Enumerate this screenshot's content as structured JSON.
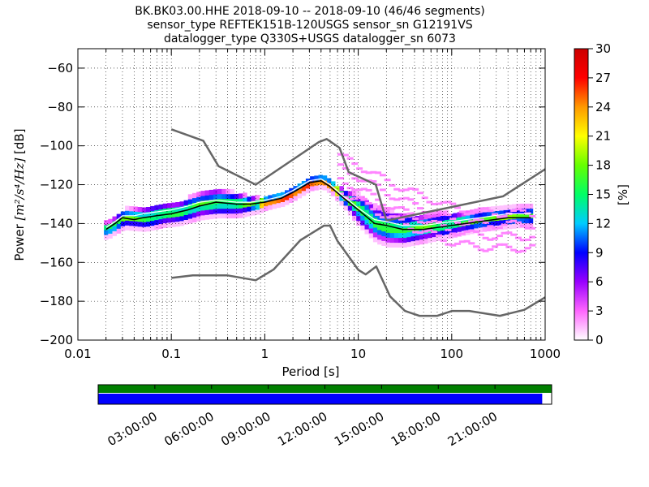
{
  "title_lines": [
    "BK.BK03.00.HHE   2018-09-10 -- 2018-09-10  (46/46 segments)",
    "sensor_type REFTEK151B-120USGS sensor_sn G12191VS",
    "datalogger_type Q330S+USGS datalogger_sn 6073"
  ],
  "colorbar": {
    "label": "[%]",
    "ticks": [
      "0",
      "3",
      "6",
      "9",
      "12",
      "15",
      "18",
      "21",
      "24",
      "27",
      "30"
    ],
    "range": [
      0,
      30
    ],
    "colors": [
      "#ffffff",
      "#ff66ff",
      "#9900ff",
      "#0000ff",
      "#00ccff",
      "#00ff66",
      "#66ff00",
      "#ffff00",
      "#ff9900",
      "#ff0000",
      "#cc0000"
    ]
  },
  "chart_data": {
    "type": "heatmap",
    "xlabel": "Period [s]",
    "ylabel_prefix": "Power ",
    "ylabel_units": "[m²/s⁴/Hz]",
    "ylabel_suffix": " [dB]",
    "xscale": "log",
    "xlim": [
      0.01,
      1000
    ],
    "ylim": [
      -200,
      -50
    ],
    "xticks": [
      {
        "v": 0.01,
        "label": "0.01"
      },
      {
        "v": 0.1,
        "label": "0.1"
      },
      {
        "v": 1,
        "label": "1"
      },
      {
        "v": 10,
        "label": "10"
      },
      {
        "v": 100,
        "label": "100"
      },
      {
        "v": 1000,
        "label": "1000"
      }
    ],
    "yticks": [
      -200,
      -180,
      -160,
      -140,
      -120,
      -100,
      -80,
      -60
    ],
    "grid": "dotted",
    "nhnm": {
      "name": "NHNM",
      "x": [
        0.1,
        0.22,
        0.32,
        0.8,
        3.8,
        4.6,
        6.3,
        7.9,
        15.4,
        20,
        354,
        1000
      ],
      "y": [
        -91.5,
        -97.4,
        -110.5,
        -120,
        -98,
        -96.5,
        -101,
        -113.5,
        -120,
        -138.5,
        -126,
        -112
      ]
    },
    "nlnm": {
      "name": "NLNM",
      "x": [
        0.1,
        0.17,
        0.4,
        0.8,
        1.24,
        2.4,
        4.3,
        5,
        6,
        10,
        12,
        15.6,
        21.9,
        31.6,
        45,
        70,
        101,
        154,
        328,
        600,
        1000
      ],
      "y": [
        -168,
        -166.7,
        -166.7,
        -169.2,
        -163.7,
        -148.6,
        -141.1,
        -141.1,
        -149,
        -163.8,
        -166.2,
        -162.1,
        -177.5,
        -185,
        -187.5,
        -187.5,
        -185,
        -185,
        -187.5,
        -184.4,
        -178
      ]
    },
    "mode": {
      "name": "mode",
      "x": [
        0.02,
        0.025,
        0.03,
        0.04,
        0.05,
        0.07,
        0.1,
        0.15,
        0.2,
        0.3,
        0.5,
        0.7,
        1,
        1.5,
        2,
        3,
        4,
        5,
        7,
        10,
        15,
        20,
        30,
        50,
        100,
        200,
        400,
        700
      ],
      "y": [
        -143,
        -140,
        -137,
        -138,
        -137,
        -136,
        -135,
        -133,
        -131,
        -129,
        -130,
        -130,
        -129,
        -127,
        -124,
        -119,
        -118,
        -121,
        -127,
        -133,
        -140,
        -141,
        -143,
        -143,
        -141,
        -139,
        -137,
        -137
      ]
    },
    "mean": {
      "name": "mean",
      "x": [
        0.02,
        0.025,
        0.03,
        0.04,
        0.05,
        0.07,
        0.1,
        0.15,
        0.2,
        0.3,
        0.5,
        0.7,
        1,
        1.5,
        2,
        3,
        4,
        5,
        7,
        10,
        15,
        20,
        30,
        50,
        100,
        200,
        400,
        700
      ],
      "y": [
        -142,
        -139,
        -136,
        -136,
        -135,
        -134,
        -133,
        -131,
        -129,
        -128,
        -129,
        -129,
        -128,
        -126,
        -123,
        -118,
        -117,
        -120,
        -126,
        -132,
        -138,
        -139,
        -141,
        -141,
        -139,
        -137,
        -135,
        -135
      ]
    },
    "density": {
      "center_x": [
        0.02,
        0.03,
        0.05,
        0.08,
        0.12,
        0.2,
        0.3,
        0.5,
        0.8,
        1,
        1.5,
        2,
        3,
        4,
        5,
        7,
        10,
        15,
        20,
        30,
        50,
        100,
        200,
        500,
        700
      ],
      "center_y": [
        -143,
        -137,
        -137,
        -135,
        -134,
        -130,
        -129,
        -130,
        -130,
        -129,
        -127,
        -124,
        -119,
        -118,
        -121,
        -127,
        -133,
        -140,
        -142,
        -143,
        -142,
        -140,
        -138,
        -136,
        -136
      ],
      "spread": [
        4,
        5,
        6,
        6,
        6,
        7,
        7,
        6,
        4,
        3,
        3,
        3,
        3,
        3,
        3,
        5,
        8,
        9,
        9,
        8,
        7,
        6,
        5,
        5,
        5
      ]
    },
    "outliers": {
      "x": [
        6,
        10,
        15,
        20,
        30,
        50,
        80,
        150,
        300,
        700
      ],
      "y": [
        -105,
        -110,
        -115,
        -118,
        -122,
        -126,
        -130,
        -133,
        -134,
        -134
      ]
    }
  },
  "timeline": {
    "ticks": [
      "03:00:00",
      "06:00:00",
      "09:00:00",
      "12:00:00",
      "15:00:00",
      "18:00:00",
      "21:00:00"
    ],
    "tick_hours": [
      3,
      6,
      9,
      12,
      15,
      18,
      21
    ],
    "range_hours": [
      0,
      24
    ],
    "data_end_hours": 23.5,
    "colors": {
      "segments": "#008000",
      "used": "#0000ff"
    }
  }
}
